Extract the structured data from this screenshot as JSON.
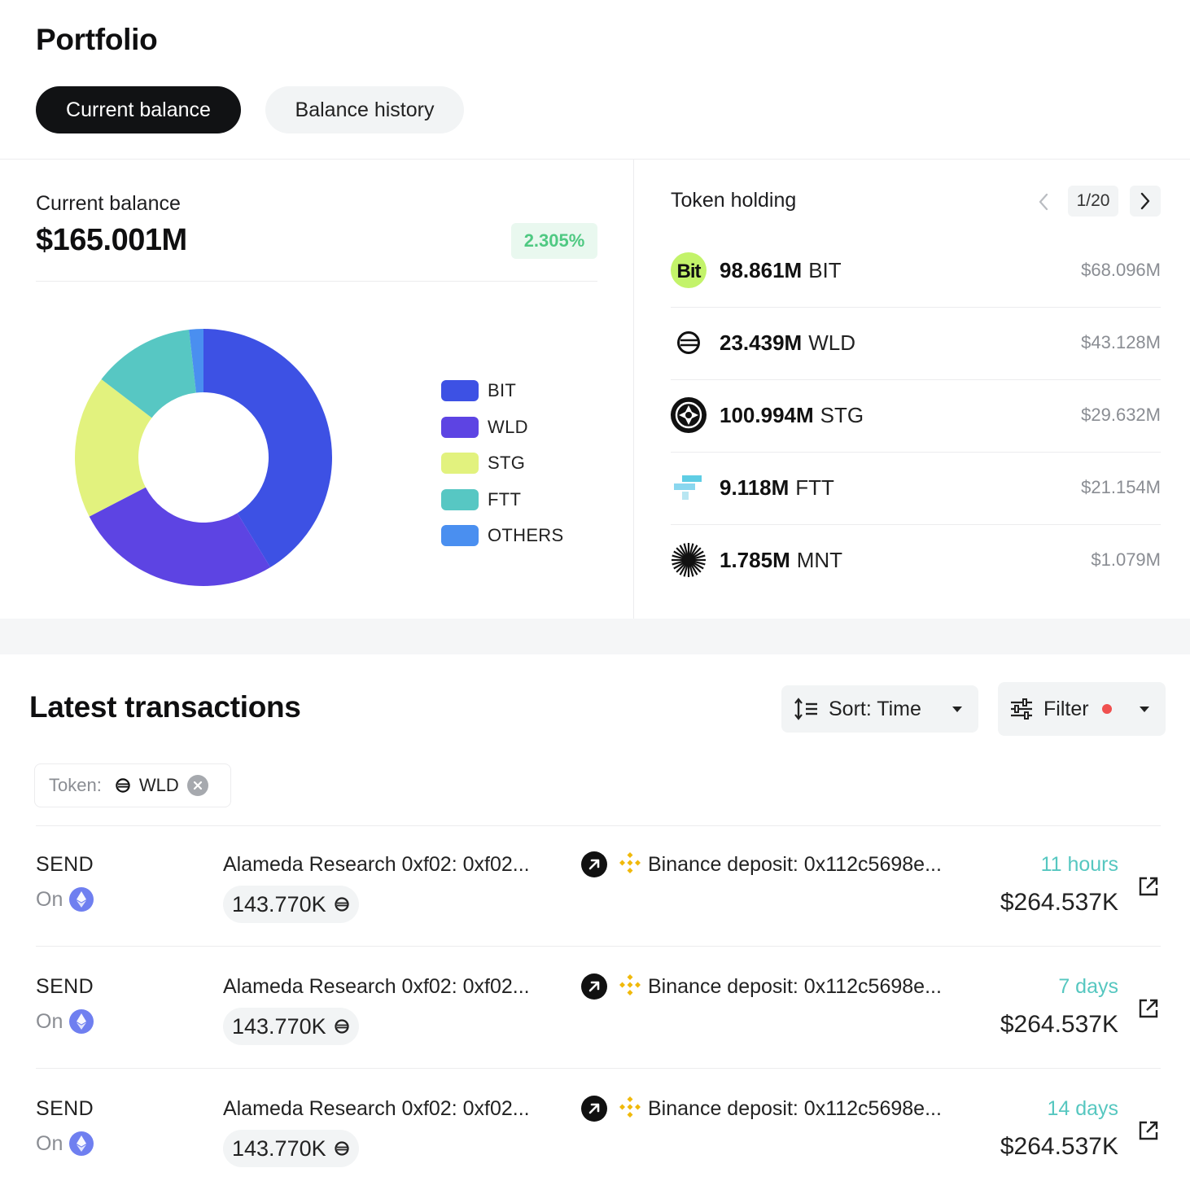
{
  "header": {
    "title": "Portfolio"
  },
  "tabs": [
    {
      "label": "Current balance",
      "active": true
    },
    {
      "label": "Balance history",
      "active": false
    }
  ],
  "balance": {
    "label": "Current balance",
    "value": "$165.001M",
    "change": "2.305%"
  },
  "chart_data": {
    "type": "pie",
    "labels": [
      "BIT",
      "WLD",
      "STG",
      "FTT",
      "OTHERS"
    ],
    "values": [
      41.3,
      26.1,
      18.0,
      12.8,
      1.8
    ],
    "colors": [
      "#3d51e4",
      "#5d44e3",
      "#e2f27e",
      "#57c7c3",
      "#4a8ff0"
    ],
    "donut": true,
    "legend": "right"
  },
  "token_holding": {
    "title": "Token holding",
    "page": "1/20",
    "items": [
      {
        "amount": "98.861M",
        "symbol": "BIT",
        "usd": "$68.096M",
        "icon": "bit-icon"
      },
      {
        "amount": "23.439M",
        "symbol": "WLD",
        "usd": "$43.128M",
        "icon": "worldcoin-icon"
      },
      {
        "amount": "100.994M",
        "symbol": "STG",
        "usd": "$29.632M",
        "icon": "stargate-icon"
      },
      {
        "amount": "9.118M",
        "symbol": "FTT",
        "usd": "$21.154M",
        "icon": "ftx-icon"
      },
      {
        "amount": "1.785M",
        "symbol": "MNT",
        "usd": "$1.079M",
        "icon": "mantle-icon"
      }
    ]
  },
  "transactions": {
    "title": "Latest transactions",
    "sort_label": "Sort: Time",
    "filter_label": "Filter",
    "token_filter": {
      "label": "Token:",
      "value": "WLD"
    },
    "rows": [
      {
        "type": "SEND",
        "on": "On",
        "from": "Alameda Research 0xf02: 0xf02...",
        "amount": "143.770K",
        "to": "Binance deposit: 0x112c5698e...",
        "time": "11 hours",
        "usd": "$264.537K"
      },
      {
        "type": "SEND",
        "on": "On",
        "from": "Alameda Research 0xf02: 0xf02...",
        "amount": "143.770K",
        "to": "Binance deposit: 0x112c5698e...",
        "time": "7 days",
        "usd": "$264.537K"
      },
      {
        "type": "SEND",
        "on": "On",
        "from": "Alameda Research 0xf02: 0xf02...",
        "amount": "143.770K",
        "to": "Binance deposit: 0x112c5698e...",
        "time": "14 days",
        "usd": "$264.537K"
      }
    ]
  }
}
